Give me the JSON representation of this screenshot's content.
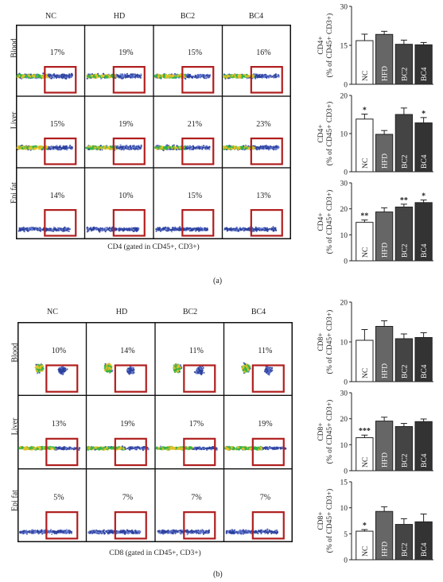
{
  "panel_a": {
    "label": "(a)",
    "columns": [
      "NC",
      "HD",
      "BC2",
      "BC4"
    ],
    "rows": [
      {
        "name": "Blood",
        "percents": [
          "17%",
          "19%",
          "15%",
          "16%"
        ]
      },
      {
        "name": "Liver",
        "percents": [
          "15%",
          "19%",
          "21%",
          "23%"
        ]
      },
      {
        "name": "Epi fat",
        "percents": [
          "14%",
          "10%",
          "15%",
          "13%"
        ]
      }
    ],
    "axis_title": "CD4 (gated in CD45+, CD3+)"
  },
  "panel_b": {
    "label": "(b)",
    "columns": [
      "NC",
      "HD",
      "BC2",
      "BC4"
    ],
    "rows": [
      {
        "name": "Blood",
        "percents": [
          "10%",
          "14%",
          "11%",
          "11%"
        ]
      },
      {
        "name": "Liver",
        "percents": [
          "13%",
          "19%",
          "17%",
          "19%"
        ]
      },
      {
        "name": "Epi fat",
        "percents": [
          "5%",
          "7%",
          "7%",
          "7%"
        ]
      }
    ],
    "axis_title": "CD8 (gated in CD45+, CD3+)"
  },
  "colors": {
    "gate": "#b01e1e",
    "bar_nc": "#ffffff",
    "bar_hfd": "#666666",
    "bar_bc2": "#444444",
    "bar_bc4": "#333333"
  },
  "chart_data": [
    {
      "type": "bar",
      "ylabel": [
        "CD4+",
        "(% of CD45+ CD3+)"
      ],
      "categories": [
        "NC",
        "HFD",
        "BC2",
        "BC4"
      ],
      "values": [
        16.8,
        19.2,
        15.4,
        15.2
      ],
      "errors": [
        2.5,
        1.2,
        1.6,
        0.9
      ],
      "sig": [
        "",
        "",
        "",
        ""
      ],
      "ylim": [
        0,
        30
      ],
      "yticks": [
        0,
        15,
        30
      ]
    },
    {
      "type": "bar",
      "ylabel": [
        "CD4+",
        "(% of CD45+ CD3+)"
      ],
      "categories": [
        "NC",
        "HFD",
        "BC2",
        "BC4"
      ],
      "values": [
        13.8,
        9.8,
        15.0,
        12.8
      ],
      "errors": [
        1.3,
        1.0,
        1.7,
        1.4
      ],
      "sig": [
        "*",
        "",
        "",
        "*"
      ],
      "ylim": [
        0,
        20
      ],
      "yticks": [
        0,
        10,
        20
      ]
    },
    {
      "type": "bar",
      "ylabel": [
        "CD4+",
        "(% of CD45+ CD3+)"
      ],
      "categories": [
        "NC",
        "HFD",
        "BC2",
        "BC4"
      ],
      "values": [
        14.8,
        18.8,
        20.7,
        22.4
      ],
      "errors": [
        0.9,
        1.6,
        1.1,
        1.0
      ],
      "sig": [
        "**",
        "",
        "**",
        "*"
      ],
      "ylim": [
        0,
        30
      ],
      "yticks": [
        0,
        10,
        20,
        30
      ]
    },
    {
      "type": "bar",
      "ylabel": [
        "CD8+",
        "(% of CD45+ CD3+)"
      ],
      "categories": [
        "NC",
        "HFD",
        "BC2",
        "BC4"
      ],
      "values": [
        10.4,
        13.9,
        10.8,
        11.1
      ],
      "errors": [
        2.7,
        1.4,
        1.2,
        1.2
      ],
      "sig": [
        "",
        "",
        "",
        ""
      ],
      "ylim": [
        0,
        20
      ],
      "yticks": [
        0,
        10,
        20
      ]
    },
    {
      "type": "bar",
      "ylabel": [
        "CD8+",
        "(% of CD45+ CD3+)"
      ],
      "categories": [
        "NC",
        "HFD",
        "BC2",
        "BC4"
      ],
      "values": [
        12.7,
        19.1,
        17.0,
        18.9
      ],
      "errors": [
        1.0,
        1.5,
        1.2,
        1.0
      ],
      "sig": [
        "***",
        "",
        "",
        ""
      ],
      "ylim": [
        0,
        30
      ],
      "yticks": [
        0,
        10,
        20,
        30
      ]
    },
    {
      "type": "bar",
      "ylabel": [
        "CD8+",
        "(% of CD45+ CD3+)"
      ],
      "categories": [
        "NC",
        "HFD",
        "BC2",
        "BC4"
      ],
      "values": [
        5.5,
        9.3,
        6.8,
        7.3
      ],
      "errors": [
        0.3,
        0.9,
        1.1,
        1.5
      ],
      "sig": [
        "*",
        "",
        "",
        ""
      ],
      "ylim": [
        0,
        15
      ],
      "yticks": [
        0,
        5,
        10,
        15
      ]
    }
  ]
}
